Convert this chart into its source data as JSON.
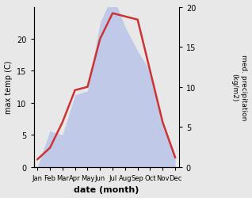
{
  "months": [
    "Jan",
    "Feb",
    "Mar",
    "Apr",
    "May",
    "Jun",
    "Jul",
    "Aug",
    "Sep",
    "Oct",
    "Nov",
    "Dec"
  ],
  "temp": [
    1.2,
    3.0,
    7.0,
    12.0,
    12.5,
    20.0,
    24.0,
    23.5,
    23.0,
    15.0,
    7.0,
    1.5
  ],
  "precip": [
    0,
    4.5,
    4.0,
    9.0,
    9.5,
    18.0,
    21.5,
    17.5,
    14.5,
    12.0,
    5.0,
    1.5
  ],
  "temp_color": "#cc3333",
  "precip_color": "#b0bce8",
  "title": "",
  "xlabel": "date (month)",
  "ylabel_left": "max temp (C)",
  "ylabel_right": "med. precipitation\n(kg/m2)",
  "ylim_left": [
    0,
    25
  ],
  "ylim_right": [
    0,
    20
  ],
  "bg_color": "#e8e8e8",
  "plot_bg": "#ffffff"
}
